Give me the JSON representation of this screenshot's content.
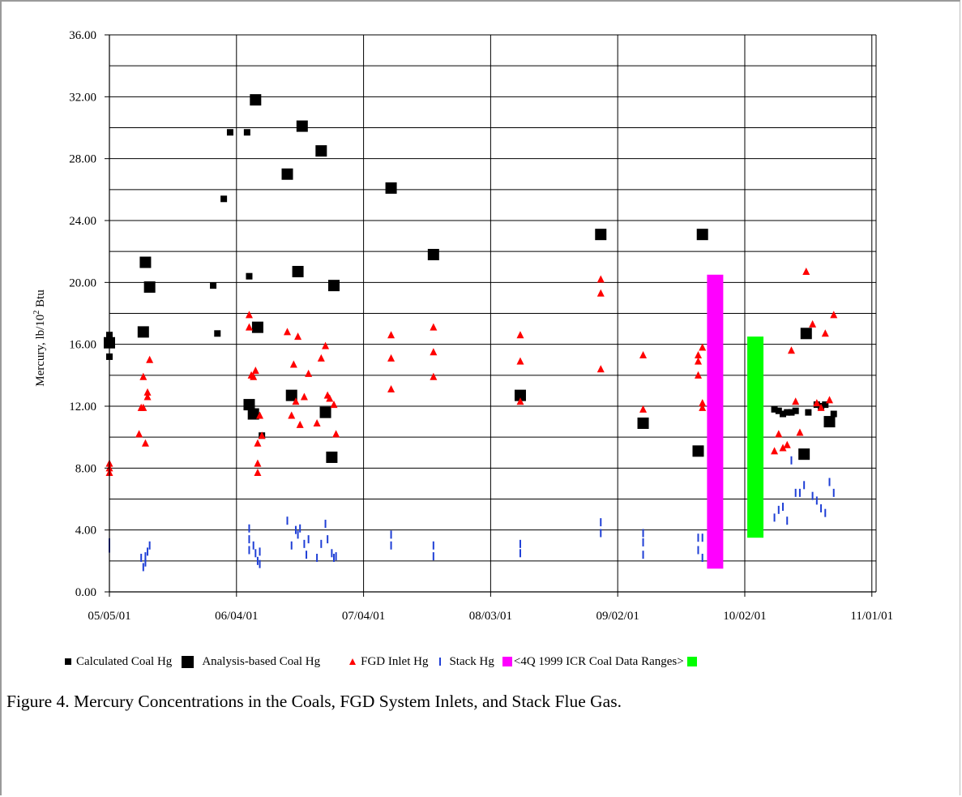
{
  "figure_caption": "Figure 4.  Mercury Concentrations in the Coals, FGD System Inlets, and Stack Flue Gas.",
  "chart_data": {
    "type": "scatter",
    "ylabel": "Mercury, lb/10",
    "ylabel_sup": "2",
    "ylabel_suffix": " Btu",
    "xlabel": "",
    "ylim": [
      0,
      36
    ],
    "yticks": [
      "0.00",
      "4.00",
      "8.00",
      "12.00",
      "16.00",
      "20.00",
      "24.00",
      "28.00",
      "32.00",
      "36.00"
    ],
    "ygrid_step": 2,
    "xticks": [
      "05/05/01",
      "06/04/01",
      "07/04/01",
      "08/03/01",
      "09/02/01",
      "10/02/01",
      "11/01/01"
    ],
    "xrange_days": [
      0,
      181
    ],
    "grid": true,
    "legend_position": "bottom",
    "series": [
      {
        "name": "Calculated Coal Hg",
        "marker": "small-square",
        "color": "#000000",
        "points": [
          [
            0.0,
            16.6
          ],
          [
            0.0,
            15.2
          ],
          [
            24.5,
            19.8
          ],
          [
            25.5,
            16.7
          ],
          [
            27.0,
            25.4
          ],
          [
            28.5,
            29.7
          ],
          [
            32.5,
            29.7
          ],
          [
            33.0,
            20.4
          ],
          [
            36.0,
            10.1
          ],
          [
            157.0,
            11.8
          ],
          [
            158.0,
            11.7
          ],
          [
            159.0,
            11.5
          ],
          [
            160.0,
            11.6
          ],
          [
            161.0,
            11.6
          ],
          [
            162.0,
            11.7
          ],
          [
            165.0,
            11.6
          ],
          [
            167.0,
            12.1
          ],
          [
            168.0,
            12.0
          ],
          [
            169.0,
            12.1
          ],
          [
            171.0,
            11.5
          ]
        ]
      },
      {
        "name": "Analysis-based Coal Hg",
        "marker": "large-square",
        "color": "#000000",
        "points": [
          [
            0.0,
            16.1
          ],
          [
            8.0,
            16.8
          ],
          [
            8.5,
            21.3
          ],
          [
            9.5,
            19.7
          ],
          [
            33.0,
            12.1
          ],
          [
            34.0,
            11.5
          ],
          [
            34.5,
            31.8
          ],
          [
            35.0,
            17.1
          ],
          [
            42.0,
            27.0
          ],
          [
            43.0,
            12.7
          ],
          [
            44.5,
            20.7
          ],
          [
            45.5,
            30.1
          ],
          [
            50.0,
            28.5
          ],
          [
            51.0,
            11.6
          ],
          [
            52.5,
            8.7
          ],
          [
            53.0,
            19.8
          ],
          [
            66.5,
            26.1
          ],
          [
            76.5,
            21.8
          ],
          [
            97.0,
            12.7
          ],
          [
            116.0,
            23.1
          ],
          [
            126.0,
            10.9
          ],
          [
            139.0,
            9.1
          ],
          [
            140.0,
            23.1
          ],
          [
            164.0,
            8.9
          ],
          [
            164.5,
            16.7
          ],
          [
            170.0,
            11.0
          ]
        ]
      },
      {
        "name": "FGD Inlet Hg",
        "marker": "triangle",
        "color": "#ff0000",
        "points": [
          [
            0.0,
            8.3
          ],
          [
            0.0,
            8.0
          ],
          [
            0.0,
            7.7
          ],
          [
            7.0,
            10.2
          ],
          [
            7.5,
            11.9
          ],
          [
            8.0,
            11.9
          ],
          [
            8.0,
            13.9
          ],
          [
            8.5,
            9.6
          ],
          [
            9.0,
            12.9
          ],
          [
            9.0,
            12.6
          ],
          [
            9.5,
            15.0
          ],
          [
            33.0,
            17.9
          ],
          [
            33.0,
            17.1
          ],
          [
            33.5,
            14.0
          ],
          [
            34.0,
            13.9
          ],
          [
            34.5,
            14.3
          ],
          [
            35.0,
            9.6
          ],
          [
            35.0,
            8.3
          ],
          [
            35.0,
            7.7
          ],
          [
            35.5,
            11.4
          ],
          [
            36.0,
            10.1
          ],
          [
            42.0,
            16.8
          ],
          [
            43.0,
            11.4
          ],
          [
            43.5,
            14.7
          ],
          [
            44.0,
            12.3
          ],
          [
            44.5,
            16.5
          ],
          [
            45.0,
            10.8
          ],
          [
            46.0,
            12.6
          ],
          [
            47.0,
            14.1
          ],
          [
            49.0,
            10.9
          ],
          [
            50.0,
            15.1
          ],
          [
            51.0,
            15.9
          ],
          [
            51.5,
            12.7
          ],
          [
            52.0,
            12.5
          ],
          [
            53.0,
            12.1
          ],
          [
            53.5,
            10.2
          ],
          [
            66.5,
            16.6
          ],
          [
            66.5,
            15.1
          ],
          [
            66.5,
            13.1
          ],
          [
            76.5,
            17.1
          ],
          [
            76.5,
            15.5
          ],
          [
            76.5,
            13.9
          ],
          [
            97.0,
            16.6
          ],
          [
            97.0,
            14.9
          ],
          [
            97.0,
            12.3
          ],
          [
            116.0,
            20.2
          ],
          [
            116.0,
            19.3
          ],
          [
            116.0,
            14.4
          ],
          [
            126.0,
            15.3
          ],
          [
            126.0,
            11.8
          ],
          [
            139.0,
            15.3
          ],
          [
            139.0,
            14.9
          ],
          [
            139.0,
            14.0
          ],
          [
            140.0,
            15.8
          ],
          [
            140.0,
            12.2
          ],
          [
            140.0,
            11.9
          ],
          [
            157.0,
            9.1
          ],
          [
            158.0,
            10.2
          ],
          [
            159.0,
            9.3
          ],
          [
            160.0,
            9.5
          ],
          [
            161.0,
            15.6
          ],
          [
            162.0,
            12.3
          ],
          [
            163.0,
            10.3
          ],
          [
            164.5,
            20.7
          ],
          [
            166.0,
            17.3
          ],
          [
            167.0,
            12.2
          ],
          [
            168.0,
            11.9
          ],
          [
            169.0,
            16.7
          ],
          [
            170.0,
            12.4
          ],
          [
            171.0,
            17.9
          ]
        ]
      },
      {
        "name": "Stack Hg",
        "marker": "tick",
        "color": "#1f3fd6",
        "points": [
          [
            0.0,
            3.2
          ],
          [
            0.0,
            2.8
          ],
          [
            7.5,
            2.2
          ],
          [
            8.0,
            1.6
          ],
          [
            8.5,
            1.9
          ],
          [
            8.5,
            2.3
          ],
          [
            9.0,
            2.6
          ],
          [
            9.5,
            3.0
          ],
          [
            33.0,
            4.1
          ],
          [
            33.0,
            3.4
          ],
          [
            33.0,
            2.7
          ],
          [
            34.0,
            3.0
          ],
          [
            34.5,
            2.5
          ],
          [
            35.0,
            2.0
          ],
          [
            35.5,
            2.6
          ],
          [
            35.5,
            1.8
          ],
          [
            42.0,
            4.6
          ],
          [
            43.0,
            3.0
          ],
          [
            44.0,
            4.0
          ],
          [
            44.5,
            3.7
          ],
          [
            45.0,
            4.1
          ],
          [
            46.0,
            3.1
          ],
          [
            46.5,
            2.4
          ],
          [
            47.0,
            3.4
          ],
          [
            49.0,
            2.2
          ],
          [
            50.0,
            3.1
          ],
          [
            51.0,
            4.4
          ],
          [
            51.5,
            3.4
          ],
          [
            52.5,
            2.5
          ],
          [
            53.0,
            2.2
          ],
          [
            53.5,
            2.3
          ],
          [
            66.5,
            3.7
          ],
          [
            66.5,
            3.0
          ],
          [
            76.5,
            3.0
          ],
          [
            76.5,
            2.3
          ],
          [
            97.0,
            3.1
          ],
          [
            97.0,
            2.5
          ],
          [
            116.0,
            4.5
          ],
          [
            116.0,
            3.8
          ],
          [
            126.0,
            3.8
          ],
          [
            126.0,
            3.2
          ],
          [
            126.0,
            2.4
          ],
          [
            139.0,
            3.5
          ],
          [
            139.0,
            2.7
          ],
          [
            140.0,
            3.5
          ],
          [
            140.0,
            2.2
          ],
          [
            157.0,
            4.8
          ],
          [
            158.0,
            5.3
          ],
          [
            159.0,
            5.5
          ],
          [
            160.0,
            4.6
          ],
          [
            161.0,
            8.5
          ],
          [
            162.0,
            6.4
          ],
          [
            163.0,
            6.4
          ],
          [
            164.0,
            6.9
          ],
          [
            166.0,
            6.2
          ],
          [
            167.0,
            5.9
          ],
          [
            168.0,
            5.4
          ],
          [
            169.0,
            5.1
          ],
          [
            170.0,
            7.1
          ],
          [
            171.0,
            6.4
          ]
        ]
      }
    ],
    "ranges": [
      {
        "name": "<4Q 1999 ICR Coal Data Ranges>",
        "color": "#ff00ff",
        "x_days": 143.0,
        "ymin": 1.5,
        "ymax": 20.5
      },
      {
        "name": "",
        "color": "#00ff00",
        "x_days": 152.5,
        "ymin": 3.5,
        "ymax": 16.5
      }
    ]
  }
}
